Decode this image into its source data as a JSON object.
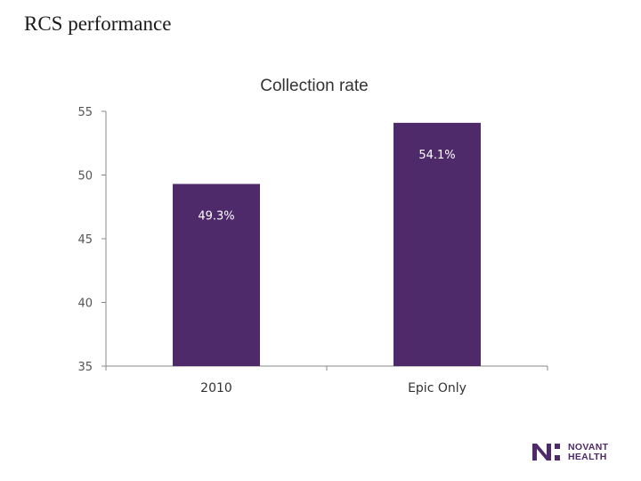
{
  "slide": {
    "title": "RCS performance"
  },
  "logo": {
    "line1": "NOVANT",
    "line2": "HEALTH",
    "color": "#4e2a6b"
  },
  "chart_data": {
    "type": "bar",
    "title": "Collection rate",
    "xlabel": "",
    "ylabel": "",
    "categories": [
      "2010",
      "Epic Only"
    ],
    "values": [
      49.3,
      54.1
    ],
    "data_labels": [
      "49.3%",
      "54.1%"
    ],
    "ylim": [
      35,
      55
    ],
    "yticks": [
      55,
      50,
      45,
      40,
      35
    ],
    "grid": false,
    "legend": "none",
    "bar_color": "#4e2a6b",
    "label_color": "#ffffff"
  }
}
